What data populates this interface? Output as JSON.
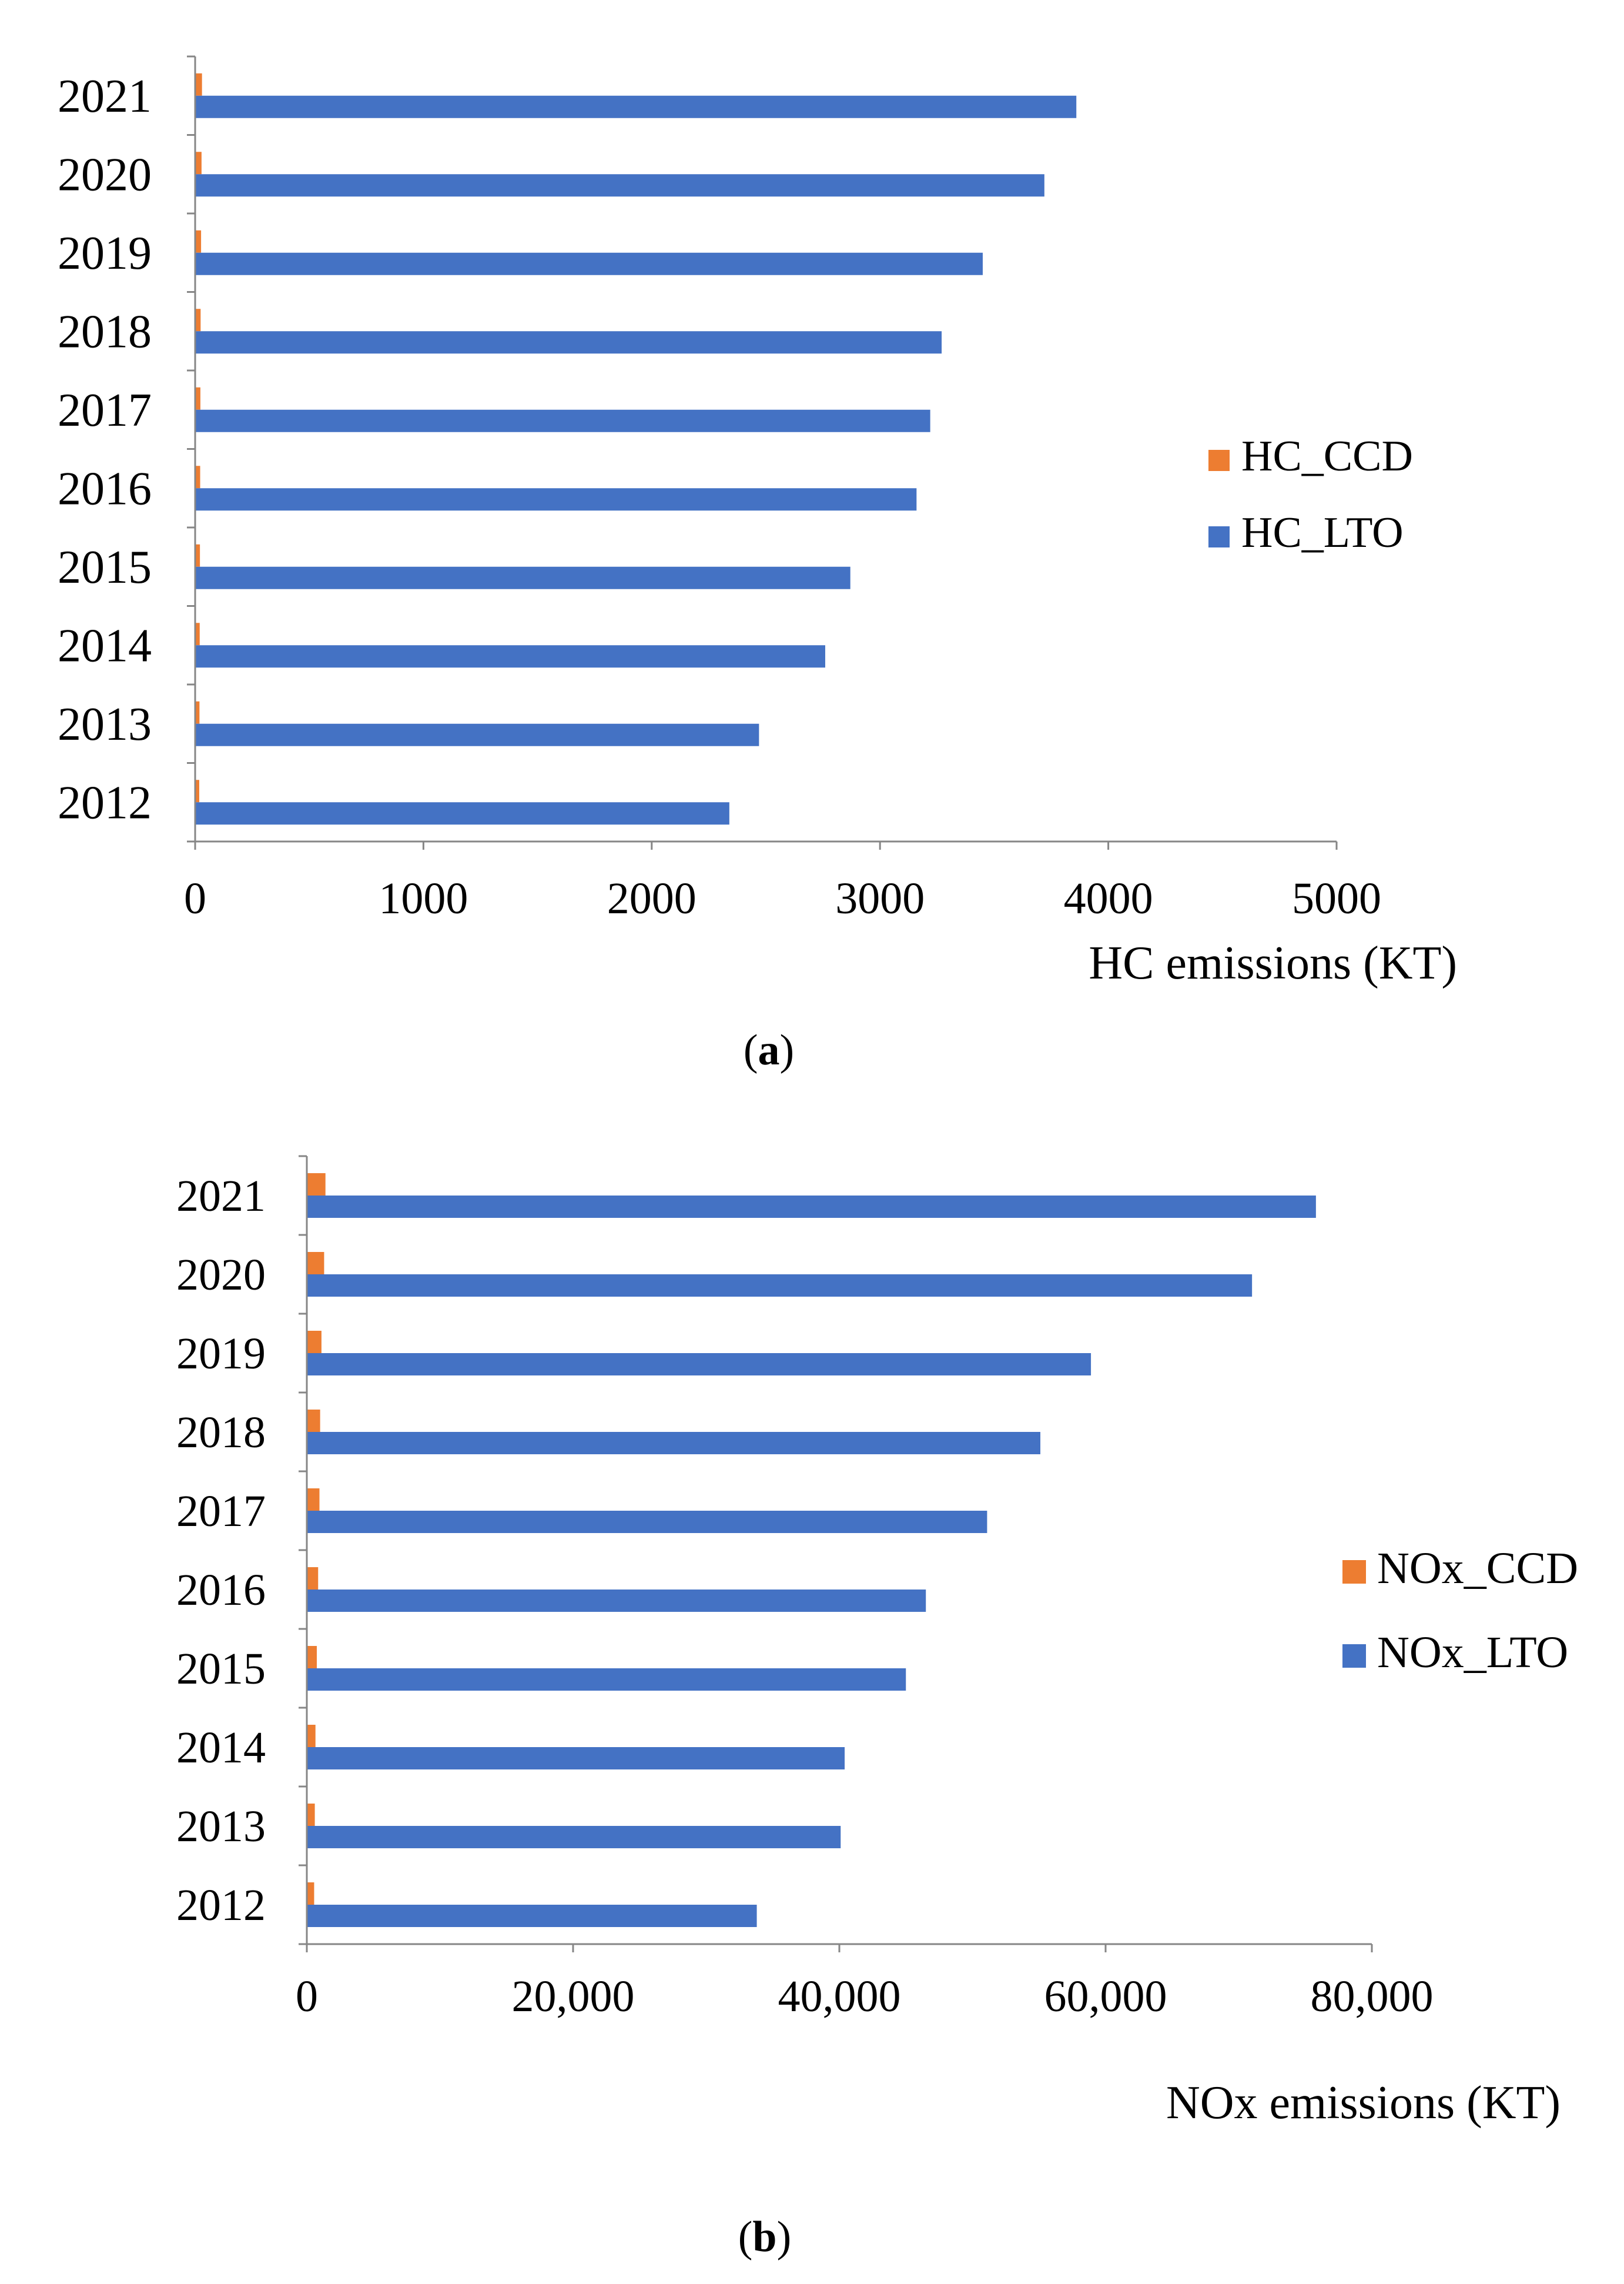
{
  "panels": [
    {
      "caption_open": "(",
      "caption_letter": "a",
      "caption_close": ")"
    },
    {
      "caption_open": "(",
      "caption_letter": "b",
      "caption_close": ")"
    }
  ],
  "chart_data": [
    {
      "type": "bar",
      "orientation": "horizontal",
      "categories": [
        "2012",
        "2013",
        "2014",
        "2015",
        "2016",
        "2017",
        "2018",
        "2019",
        "2020",
        "2021"
      ],
      "series": [
        {
          "name": "HC_CCD",
          "color": "#ED7D31",
          "values": [
            18,
            19,
            20,
            21,
            22,
            23,
            24,
            26,
            28,
            30
          ]
        },
        {
          "name": "HC_LTO",
          "color": "#4472C4",
          "values": [
            2340,
            2470,
            2760,
            2870,
            3160,
            3220,
            3270,
            3450,
            3720,
            3860
          ]
        }
      ],
      "xlabel": "HC emissions (KT)",
      "xlim": [
        0,
        5000
      ],
      "xticks": [
        0,
        1000,
        2000,
        3000,
        4000,
        5000
      ],
      "xtick_labels": [
        "0",
        "1000",
        "2000",
        "3000",
        "4000",
        "5000"
      ],
      "legend_position": "right"
    },
    {
      "type": "bar",
      "orientation": "horizontal",
      "categories": [
        "2012",
        "2013",
        "2014",
        "2015",
        "2016",
        "2017",
        "2018",
        "2019",
        "2020",
        "2021"
      ],
      "series": [
        {
          "name": "NOx_CCD",
          "color": "#ED7D31",
          "values": [
            550,
            600,
            650,
            750,
            850,
            950,
            1000,
            1100,
            1300,
            1400
          ]
        },
        {
          "name": "NOx_LTO",
          "color": "#4472C4",
          "values": [
            33800,
            40100,
            40400,
            45000,
            46500,
            51100,
            55100,
            58900,
            71000,
            75800
          ]
        }
      ],
      "xlabel": "NOx emissions (KT)",
      "xlim": [
        0,
        80000
      ],
      "xticks": [
        0,
        20000,
        40000,
        60000,
        80000
      ],
      "xtick_labels": [
        "0",
        "20,000",
        "40,000",
        "60,000",
        "80,000"
      ],
      "legend_position": "right"
    }
  ]
}
